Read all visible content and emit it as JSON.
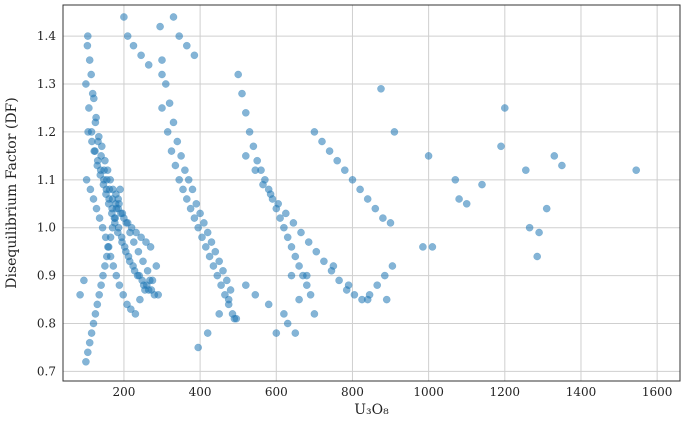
{
  "chart_data": {
    "type": "scatter",
    "title": "",
    "xlabel": "U₃O₈",
    "ylabel": "Disequilibrium Factor (DF)",
    "xlim": [
      40,
      1660
    ],
    "ylim": [
      0.68,
      1.465
    ],
    "xticks": [
      "200",
      "400",
      "600",
      "800",
      "1000",
      "1200",
      "1400",
      "1600"
    ],
    "yticks": [
      "0.7",
      "0.8",
      "0.9",
      "1.0",
      "1.1",
      "1.2",
      "1.3",
      "1.4"
    ],
    "grid": true,
    "color": "#1f77b4",
    "series": [
      {
        "x": [
          105,
          110,
          118,
          125,
          132,
          140,
          148,
          155,
          162,
          170,
          178,
          185,
          192,
          200,
          210,
          220,
          232,
          245,
          258,
          270,
          100,
          108,
          115,
          122,
          130,
          138,
          146,
          153,
          160,
          168,
          176,
          184,
          195,
          205,
          215,
          228,
          240,
          252,
          265,
          280,
          102,
          112,
          120,
          128,
          136,
          144,
          152,
          158,
          165,
          172,
          180,
          188,
          198,
          208,
          218,
          230,
          242,
          255,
          268,
          285,
          104,
          114,
          121,
          127,
          134,
          142,
          150,
          157,
          164,
          171,
          179,
          187,
          196,
          206,
          216,
          226,
          238,
          250,
          262,
          275,
          106,
          116,
          124,
          131,
          139,
          147,
          154,
          161,
          169,
          177,
          186,
          194,
          202,
          212,
          224,
          236,
          248,
          260,
          272,
          290,
          295,
          300,
          310,
          320,
          330,
          340,
          350,
          360,
          370,
          380,
          390,
          400,
          410,
          420,
          430,
          440,
          450,
          460,
          470,
          480,
          300,
          315,
          325,
          335,
          345,
          355,
          365,
          375,
          385,
          395,
          405,
          415,
          425,
          435,
          445,
          455,
          465,
          475,
          485,
          495,
          500,
          510,
          520,
          530,
          540,
          550,
          560,
          570,
          580,
          590,
          600,
          610,
          620,
          630,
          640,
          650,
          660,
          670,
          680,
          690,
          520,
          545,
          565,
          585,
          605,
          625,
          645,
          665,
          685,
          705,
          725,
          745,
          765,
          785,
          805,
          825,
          845,
          865,
          885,
          905,
          700,
          720,
          740,
          760,
          780,
          800,
          820,
          840,
          860,
          880,
          900,
          985,
          1000,
          1010,
          1070,
          1080,
          1100,
          1140,
          1190,
          1200,
          1255,
          1265,
          1285,
          1290,
          1310,
          1330,
          1350,
          1545,
          85,
          95,
          100,
          105,
          110,
          115,
          120,
          125,
          130,
          135,
          140,
          145,
          150,
          155,
          160,
          165,
          170,
          175,
          180,
          185,
          190,
          200,
          210,
          225,
          245,
          265,
          300,
          330,
          345,
          365,
          385,
          395,
          420,
          450,
          475,
          490,
          520,
          545,
          580,
          600,
          620,
          630,
          640,
          650,
          660,
          680,
          700,
          750,
          790,
          840,
          875,
          890,
          910
        ],
        "y": [
          1.4,
          1.35,
          1.28,
          1.22,
          1.18,
          1.15,
          1.12,
          1.1,
          1.08,
          1.06,
          1.05,
          1.04,
          1.03,
          1.02,
          1.01,
          1.0,
          0.99,
          0.98,
          0.97,
          0.96,
          1.3,
          1.25,
          1.2,
          1.16,
          1.13,
          1.11,
          1.09,
          1.07,
          1.05,
          1.03,
          1.01,
          0.99,
          0.97,
          0.95,
          0.93,
          0.91,
          0.9,
          0.88,
          0.87,
          0.86,
          1.1,
          1.08,
          1.06,
          1.04,
          1.02,
          1.0,
          0.98,
          0.96,
          0.94,
          0.92,
          0.9,
          0.88,
          0.86,
          0.84,
          0.83,
          0.82,
          0.85,
          0.87,
          0.89,
          0.92,
          1.38,
          1.32,
          1.27,
          1.23,
          1.19,
          1.17,
          1.14,
          1.12,
          1.1,
          1.08,
          1.07,
          1.05,
          1.03,
          1.01,
          0.99,
          0.97,
          0.95,
          0.93,
          0.91,
          0.89,
          1.2,
          1.18,
          1.16,
          1.14,
          1.12,
          1.1,
          1.08,
          1.06,
          1.04,
          1.02,
          1.0,
          0.98,
          0.96,
          0.94,
          0.92,
          0.9,
          0.89,
          0.88,
          0.87,
          0.86,
          1.42,
          1.35,
          1.3,
          1.26,
          1.22,
          1.18,
          1.15,
          1.12,
          1.1,
          1.08,
          1.05,
          1.03,
          1.01,
          0.99,
          0.97,
          0.95,
          0.93,
          0.91,
          0.89,
          0.87,
          1.25,
          1.2,
          1.16,
          1.13,
          1.1,
          1.08,
          1.06,
          1.04,
          1.02,
          1.0,
          0.98,
          0.96,
          0.94,
          0.92,
          0.9,
          0.88,
          0.86,
          0.84,
          0.82,
          0.81,
          1.32,
          1.28,
          1.24,
          1.2,
          1.17,
          1.14,
          1.12,
          1.1,
          1.08,
          1.06,
          1.04,
          1.02,
          1.0,
          0.98,
          0.96,
          0.94,
          0.92,
          0.9,
          0.88,
          0.86,
          1.15,
          1.12,
          1.09,
          1.07,
          1.05,
          1.03,
          1.01,
          0.99,
          0.97,
          0.95,
          0.93,
          0.91,
          0.89,
          0.87,
          0.86,
          0.85,
          0.86,
          0.88,
          0.9,
          0.92,
          1.2,
          1.18,
          1.16,
          1.14,
          1.12,
          1.1,
          1.08,
          1.06,
          1.04,
          1.02,
          1.01,
          0.96,
          1.15,
          0.96,
          1.1,
          1.06,
          1.05,
          1.09,
          1.17,
          1.25,
          1.12,
          1.0,
          0.94,
          0.99,
          1.04,
          1.15,
          1.13,
          1.12,
          0.86,
          0.89,
          0.72,
          0.74,
          0.76,
          0.78,
          0.8,
          0.82,
          0.84,
          0.86,
          0.88,
          0.9,
          0.92,
          0.94,
          0.96,
          0.98,
          1.0,
          1.02,
          1.04,
          1.06,
          1.08,
          1.44,
          1.4,
          1.38,
          1.36,
          1.34,
          1.32,
          1.44,
          1.4,
          1.38,
          1.36,
          0.75,
          0.78,
          0.82,
          0.85,
          0.81,
          0.88,
          0.86,
          0.84,
          0.78,
          0.82,
          0.8,
          0.9,
          0.78,
          0.85,
          0.9,
          0.82,
          0.92,
          0.88,
          0.85,
          1.29,
          0.85,
          1.2
        ]
      }
    ]
  }
}
